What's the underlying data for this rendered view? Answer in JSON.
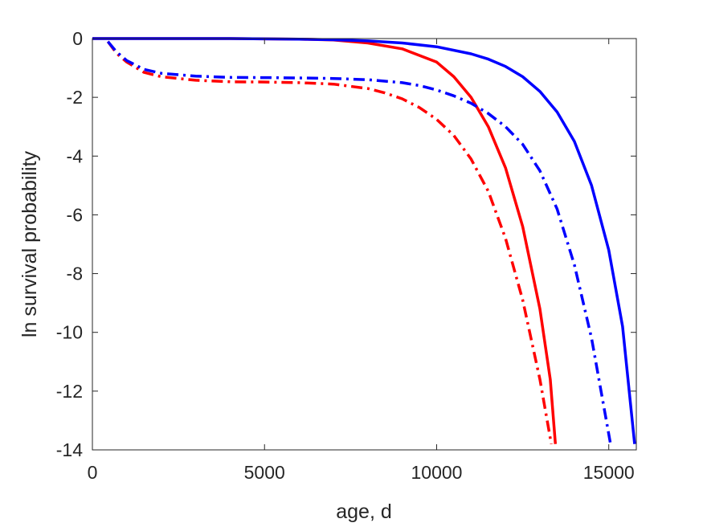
{
  "chart_data": {
    "type": "line",
    "title": "",
    "xlabel": "age, d",
    "ylabel": "ln survival probability",
    "xlim": [
      0,
      15800
    ],
    "ylim": [
      -14,
      0
    ],
    "xticks": [
      0,
      5000,
      10000,
      15000
    ],
    "yticks": [
      0,
      -2,
      -4,
      -6,
      -8,
      -10,
      -12,
      -14
    ],
    "grid": false,
    "legend": "none",
    "series": [
      {
        "color": "#ff0000",
        "style": "solid",
        "x": [
          0,
          2000,
          4000,
          6000,
          7000,
          8000,
          9000,
          10000,
          10500,
          11000,
          11500,
          12000,
          12500,
          13000,
          13300,
          13450
        ],
        "y": [
          0,
          0,
          0,
          -0.02,
          -0.05,
          -0.15,
          -0.35,
          -0.8,
          -1.3,
          -2.0,
          -3.0,
          -4.4,
          -6.4,
          -9.2,
          -11.6,
          -13.8
        ]
      },
      {
        "color": "#ff0000",
        "style": "dashdot",
        "x": [
          450,
          700,
          1000,
          1500,
          2000,
          3000,
          4000,
          5000,
          6000,
          7000,
          8000,
          8500,
          9000,
          9500,
          10000,
          10500,
          11000,
          11500,
          12000,
          12500,
          13000,
          13330
        ],
        "y": [
          -0.1,
          -0.5,
          -0.8,
          -1.15,
          -1.3,
          -1.42,
          -1.47,
          -1.48,
          -1.5,
          -1.55,
          -1.7,
          -1.85,
          -2.05,
          -2.35,
          -2.75,
          -3.3,
          -4.1,
          -5.2,
          -6.8,
          -8.9,
          -11.6,
          -13.8
        ]
      },
      {
        "color": "#0000ff",
        "style": "solid",
        "x": [
          0,
          4000,
          6000,
          7000,
          8000,
          9000,
          10000,
          11000,
          11500,
          12000,
          12500,
          13000,
          13500,
          14000,
          14500,
          15000,
          15400,
          15750
        ],
        "y": [
          0,
          0,
          -0.02,
          -0.04,
          -0.08,
          -0.15,
          -0.28,
          -0.52,
          -0.7,
          -0.95,
          -1.3,
          -1.8,
          -2.5,
          -3.5,
          -5.0,
          -7.2,
          -9.8,
          -13.8
        ]
      },
      {
        "color": "#0000ff",
        "style": "dashdot",
        "x": [
          450,
          700,
          1000,
          1500,
          2000,
          3000,
          4000,
          5000,
          6000,
          7000,
          8000,
          9000,
          9500,
          10000,
          10500,
          11000,
          11500,
          12000,
          12500,
          13000,
          13500,
          14000,
          14500,
          15050
        ],
        "y": [
          -0.1,
          -0.45,
          -0.75,
          -1.05,
          -1.18,
          -1.28,
          -1.32,
          -1.33,
          -1.34,
          -1.36,
          -1.4,
          -1.5,
          -1.6,
          -1.75,
          -1.95,
          -2.2,
          -2.55,
          -3.0,
          -3.6,
          -4.5,
          -5.8,
          -7.7,
          -10.2,
          -13.8
        ]
      }
    ]
  }
}
